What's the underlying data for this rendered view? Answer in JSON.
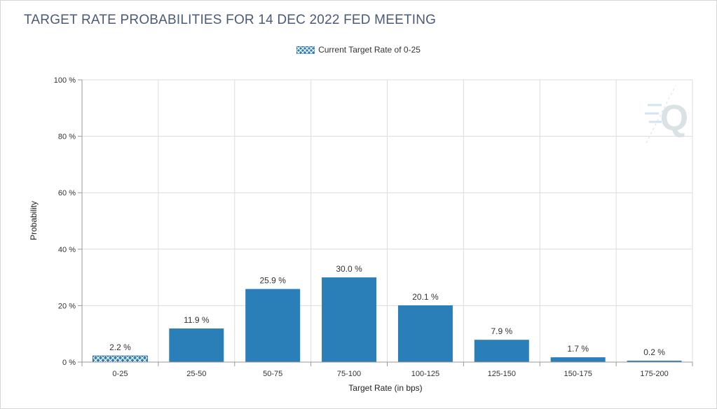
{
  "header": {
    "title": "TARGET RATE PROBABILITIES FOR 14 DEC 2022 FED MEETING"
  },
  "legend": {
    "label": "Current Target Rate of 0-25"
  },
  "chart_data": {
    "type": "bar",
    "title": "TARGET RATE PROBABILITIES FOR 14 DEC 2022 FED MEETING",
    "xlabel": "Target Rate (in bps)",
    "ylabel": "Probability",
    "ylim": [
      0,
      100
    ],
    "y_ticks": [
      0,
      20,
      40,
      60,
      80,
      100
    ],
    "y_tick_labels": [
      "0 %",
      "20 %",
      "40 %",
      "60 %",
      "80 %",
      "100 %"
    ],
    "categories": [
      "0-25",
      "25-50",
      "50-75",
      "75-100",
      "100-125",
      "125-150",
      "150-175",
      "175-200"
    ],
    "values": [
      2.2,
      11.9,
      25.9,
      30.0,
      20.1,
      7.9,
      1.7,
      0.2
    ],
    "value_labels": [
      "2.2 %",
      "11.9 %",
      "25.9 %",
      "30.0 %",
      "20.1 %",
      "7.9 %",
      "1.7 %",
      "0.2 %"
    ],
    "highlight_category": "0-25",
    "grid": true,
    "legend_position": "top-center",
    "colors": {
      "bar": "#2b7fb9",
      "grid": "#dcdcdc",
      "title": "#4a5a78",
      "watermark": "#d9e3e8"
    }
  }
}
